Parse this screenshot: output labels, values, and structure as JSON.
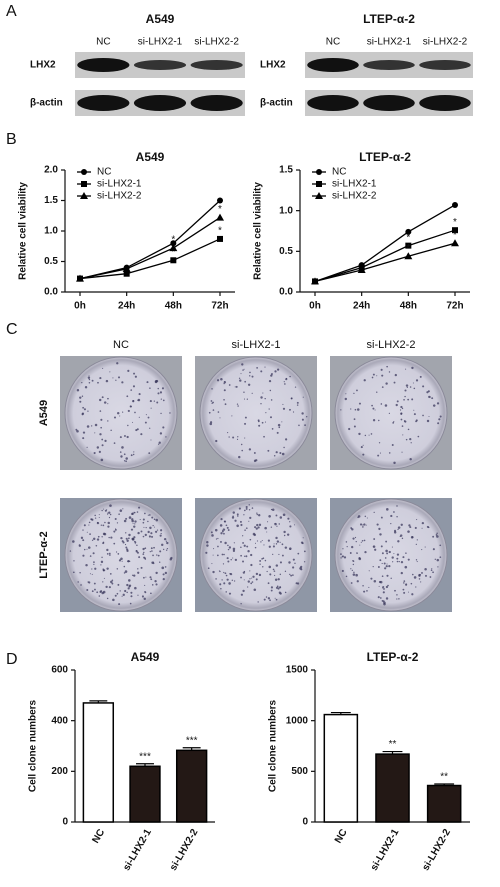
{
  "panel_labels": [
    "A",
    "B",
    "C",
    "D"
  ],
  "western_blot": [
    {
      "title": "A549",
      "lanes": [
        "NC",
        "si-LHX2-1",
        "si-LHX2-2"
      ],
      "rows": [
        "LHX2",
        "β-actin"
      ]
    },
    {
      "title": "LTEP-α-2",
      "lanes": [
        "NC",
        "si-LHX2-1",
        "si-LHX2-2"
      ],
      "rows": [
        "LHX2",
        "β-actin"
      ]
    }
  ],
  "chart_data": [
    {
      "type": "line",
      "title": "A549",
      "y_label": "Relative cell viability",
      "categories": [
        "0h",
        "24h",
        "48h",
        "72h"
      ],
      "ylim": [
        0,
        2.0
      ],
      "yticks": [
        {
          "value": 0,
          "label": "0.0"
        },
        0.5,
        {
          "value": 1,
          "label": "1.0"
        },
        1.5,
        {
          "value": 2,
          "label": "2.0"
        }
      ],
      "legend": "upper left",
      "series": [
        {
          "name": "NC",
          "color": "#000000",
          "marker": "circle",
          "values": [
            0.22,
            0.4,
            0.8,
            1.5
          ]
        },
        {
          "name": "si-LHX2-1",
          "color": "#000000",
          "marker": "square",
          "values": [
            0.22,
            0.3,
            0.52,
            0.87
          ],
          "annotations": [
            null,
            null,
            "*",
            "*"
          ]
        },
        {
          "name": "si-LHX2-2",
          "color": "#000000",
          "marker": "triangle",
          "values": [
            0.22,
            0.38,
            0.72,
            1.22
          ],
          "annotations": [
            null,
            null,
            "*",
            "*"
          ]
        }
      ]
    },
    {
      "type": "line",
      "title": "LTEP-α-2",
      "y_label": "Relative cell viability",
      "categories": [
        "0h",
        "24h",
        "48h",
        "72h"
      ],
      "ylim": [
        0,
        1.5
      ],
      "yticks": [
        {
          "value": 0,
          "label": "0.0"
        },
        0.5,
        {
          "value": 1,
          "label": "1.0"
        },
        1.5
      ],
      "legend": "upper left",
      "series": [
        {
          "name": "NC",
          "color": "#000000",
          "marker": "circle",
          "values": [
            0.13,
            0.33,
            0.74,
            1.07
          ]
        },
        {
          "name": "si-LHX2-1",
          "color": "#000000",
          "marker": "square",
          "values": [
            0.13,
            0.3,
            0.57,
            0.76
          ],
          "annotations": [
            null,
            null,
            "*",
            "*"
          ]
        },
        {
          "name": "si-LHX2-2",
          "color": "#000000",
          "marker": "triangle",
          "values": [
            0.13,
            0.27,
            0.44,
            0.6
          ],
          "annotations": [
            null,
            null,
            "*",
            "*"
          ]
        }
      ]
    },
    {
      "type": "bar",
      "title": "A549",
      "y_label": "Cell clone numbers",
      "categories": [
        "NC",
        "si-LHX2-1",
        "si-LHX2-2"
      ],
      "values": [
        470,
        220,
        283
      ],
      "errors": [
        8,
        10,
        10
      ],
      "colors": [
        "#ffffff",
        "#231815",
        "#231815"
      ],
      "annotations": [
        null,
        "***",
        "***"
      ],
      "ylim": [
        0,
        600
      ],
      "yticks": [
        0,
        200,
        400,
        600
      ]
    },
    {
      "type": "bar",
      "title": "LTEP-α-2",
      "y_label": "Cell clone numbers",
      "categories": [
        "NC",
        "si-LHX2-1",
        "si-LHX2-2"
      ],
      "values": [
        1060,
        670,
        360
      ],
      "errors": [
        20,
        25,
        15
      ],
      "colors": [
        "#ffffff",
        "#231815",
        "#231815"
      ],
      "annotations": [
        null,
        "**",
        "**"
      ],
      "ylim": [
        0,
        1500
      ],
      "yticks": [
        0,
        500,
        1000,
        1500
      ]
    }
  ],
  "colony": {
    "columns": [
      "NC",
      "si-LHX2-1",
      "si-LHX2-2"
    ],
    "rows": [
      "A549",
      "LTEP-α-2"
    ]
  }
}
